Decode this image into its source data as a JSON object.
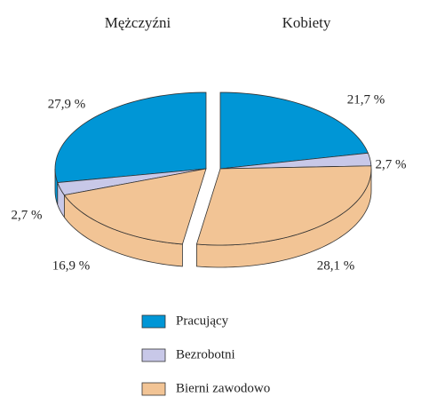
{
  "chart_data": {
    "type": "pie",
    "categories": [
      "Pracujący",
      "Bezrobotni",
      "Bierni zawodowo"
    ],
    "colors": [
      "#0096d6",
      "#c8c8e8",
      "#f2c495"
    ],
    "series": [
      {
        "name": "Mężczyźni",
        "values": [
          27.9,
          2.7,
          16.9
        ],
        "value_labels": [
          "27,9 %",
          "2,7 %",
          "16,9 %"
        ]
      },
      {
        "name": "Kobiety",
        "values": [
          21.7,
          2.7,
          28.1
        ],
        "value_labels": [
          "21,7 %",
          "2,7 %",
          "28,1 %"
        ]
      }
    ]
  }
}
